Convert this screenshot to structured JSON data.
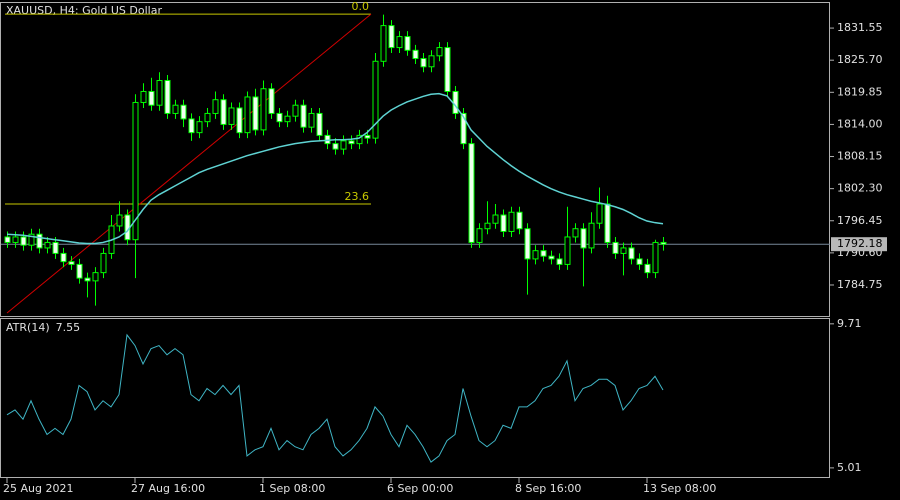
{
  "chart_data": [
    {
      "type": "candlestick",
      "title": "XAUUSD, H4:  Gold US Dollar",
      "color": "#00ff00",
      "categories": [
        "25 Aug 2021",
        null,
        null,
        null,
        null,
        null,
        null,
        null,
        null,
        null,
        null,
        null,
        null,
        null,
        null,
        null,
        "27 Aug 16:00",
        null,
        null,
        null,
        null,
        null,
        null,
        null,
        null,
        null,
        null,
        null,
        null,
        null,
        null,
        null,
        "1 Sep 08:00",
        null,
        null,
        null,
        null,
        null,
        null,
        null,
        null,
        null,
        null,
        null,
        null,
        null,
        null,
        null,
        "6 Sep 00:00",
        null,
        null,
        null,
        null,
        null,
        null,
        null,
        null,
        null,
        null,
        null,
        null,
        null,
        null,
        null,
        "8 Sep 16:00",
        null,
        null,
        null,
        null,
        null,
        null,
        null,
        null,
        null,
        null,
        null,
        null,
        null,
        null,
        null,
        "13 Sep 08:00",
        null,
        null
      ],
      "open": [
        1793.5,
        1792.5,
        1793.5,
        1792.0,
        1794.0,
        1791.5,
        1792.5,
        1790.5,
        1789.0,
        1788.5,
        1786.0,
        1785.5,
        1787.0,
        1790.5,
        1795.5,
        1797.5,
        1793.0,
        1818.0,
        1820.0,
        1817.5,
        1822.0,
        1816.0,
        1817.5,
        1815.0,
        1812.5,
        1814.5,
        1816.0,
        1818.5,
        1814.0,
        1817.0,
        1812.5,
        1819.0,
        1813.0,
        1820.5,
        1816.0,
        1814.5,
        1815.5,
        1817.5,
        1813.5,
        1816.0,
        1812.0,
        1810.5,
        1809.5,
        1811.0,
        1810.5,
        1812.0,
        1811.5,
        1825.5,
        1832.0,
        1828.0,
        1830.0,
        1827.5,
        1826.0,
        1824.5,
        1826.5,
        1828.0,
        1820.0,
        1816.0,
        1810.5,
        1792.5,
        1795.0,
        1796.0,
        1797.5,
        1794.5,
        1798.0,
        1795.0,
        1789.5,
        1791.0,
        1790.0,
        1789.5,
        1788.5,
        1793.5,
        1795.0,
        1791.5,
        1796.0,
        1799.5,
        1792.5,
        1790.5,
        1791.5,
        1789.5,
        1788.5,
        1787.0,
        1792.5
      ],
      "high": [
        1794.5,
        1794.5,
        1794.5,
        1795.0,
        1795.0,
        1793.5,
        1793.5,
        1791.5,
        1790.0,
        1789.5,
        1787.0,
        1788.0,
        1791.5,
        1797.5,
        1800.0,
        1798.5,
        1819.5,
        1821.5,
        1822.5,
        1823.5,
        1823.0,
        1818.5,
        1818.5,
        1816.0,
        1815.5,
        1817.0,
        1820.0,
        1819.5,
        1818.0,
        1818.0,
        1820.0,
        1820.5,
        1822.0,
        1821.5,
        1817.0,
        1816.5,
        1818.5,
        1818.5,
        1817.0,
        1817.0,
        1813.0,
        1811.5,
        1812.0,
        1812.0,
        1813.0,
        1813.0,
        1827.0,
        1834.0,
        1833.0,
        1831.0,
        1831.0,
        1828.5,
        1827.0,
        1827.5,
        1829.0,
        1829.0,
        1821.0,
        1817.0,
        1811.5,
        1796.0,
        1800.0,
        1799.5,
        1798.5,
        1799.0,
        1799.0,
        1796.0,
        1792.0,
        1792.0,
        1791.0,
        1790.5,
        1799.0,
        1796.0,
        1796.0,
        1798.0,
        1802.5,
        1801.0,
        1793.5,
        1792.5,
        1792.5,
        1790.5,
        1789.5,
        1793.0,
        1793.5
      ],
      "low": [
        1791.5,
        1791.5,
        1791.0,
        1791.0,
        1790.5,
        1790.5,
        1789.5,
        1788.0,
        1787.5,
        1785.0,
        1782.5,
        1781.0,
        1786.0,
        1789.5,
        1794.5,
        1792.0,
        1786.0,
        1817.0,
        1816.5,
        1816.5,
        1815.0,
        1815.0,
        1813.5,
        1811.0,
        1811.5,
        1813.5,
        1815.0,
        1813.0,
        1813.0,
        1811.5,
        1811.5,
        1812.0,
        1812.0,
        1815.0,
        1813.5,
        1813.5,
        1814.5,
        1812.5,
        1812.5,
        1811.0,
        1809.5,
        1808.5,
        1808.5,
        1809.5,
        1809.5,
        1810.5,
        1810.5,
        1824.5,
        1827.0,
        1827.0,
        1826.5,
        1825.0,
        1823.5,
        1823.5,
        1825.5,
        1819.0,
        1815.0,
        1809.5,
        1791.5,
        1791.5,
        1794.0,
        1795.0,
        1793.5,
        1793.5,
        1794.0,
        1783.0,
        1788.5,
        1789.0,
        1788.5,
        1787.5,
        1787.5,
        1792.5,
        1784.5,
        1790.5,
        1795.0,
        1791.5,
        1789.5,
        1786.5,
        1788.5,
        1787.5,
        1786.0,
        1786.0,
        1791.0
      ],
      "close": [
        1792.5,
        1793.5,
        1792.0,
        1794.0,
        1791.5,
        1792.5,
        1790.5,
        1789.0,
        1788.5,
        1786.0,
        1785.5,
        1787.0,
        1790.5,
        1795.5,
        1797.5,
        1793.0,
        1818.0,
        1820.0,
        1817.5,
        1822.0,
        1816.0,
        1817.5,
        1815.0,
        1812.5,
        1814.5,
        1816.0,
        1818.5,
        1814.0,
        1817.0,
        1812.5,
        1819.0,
        1813.0,
        1820.5,
        1816.0,
        1814.5,
        1815.5,
        1817.5,
        1813.5,
        1816.0,
        1812.0,
        1810.5,
        1809.5,
        1811.0,
        1810.5,
        1812.0,
        1811.5,
        1825.5,
        1832.0,
        1828.0,
        1830.0,
        1827.5,
        1826.0,
        1824.5,
        1826.5,
        1828.0,
        1820.0,
        1816.0,
        1810.5,
        1792.5,
        1795.0,
        1796.0,
        1797.5,
        1794.5,
        1798.0,
        1795.0,
        1789.5,
        1791.0,
        1790.0,
        1789.5,
        1788.5,
        1793.5,
        1795.0,
        1791.5,
        1796.0,
        1799.5,
        1792.5,
        1790.5,
        1791.5,
        1789.5,
        1788.5,
        1787.0,
        1792.5,
        1792.18
      ],
      "ma": {
        "color": "#5fd3d3",
        "values": [
          1794.0,
          1793.9,
          1793.8,
          1793.6,
          1793.4,
          1793.2,
          1793.0,
          1792.8,
          1792.6,
          1792.4,
          1792.3,
          1792.3,
          1792.5,
          1792.9,
          1793.5,
          1794.5,
          1796.5,
          1798.5,
          1800.2,
          1801.2,
          1802.0,
          1802.8,
          1803.6,
          1804.4,
          1805.2,
          1805.8,
          1806.3,
          1806.8,
          1807.3,
          1807.8,
          1808.3,
          1808.7,
          1809.1,
          1809.5,
          1809.9,
          1810.2,
          1810.5,
          1810.7,
          1810.9,
          1811.0,
          1811.1,
          1811.2,
          1811.2,
          1811.3,
          1811.5,
          1812.5,
          1814.0,
          1815.5,
          1816.6,
          1817.4,
          1818.1,
          1818.6,
          1819.1,
          1819.5,
          1819.6,
          1819.2,
          1817.5,
          1815.5,
          1813.0,
          1811.5,
          1810.0,
          1808.8,
          1807.6,
          1806.5,
          1805.5,
          1804.6,
          1803.8,
          1803.0,
          1802.3,
          1801.7,
          1801.2,
          1800.8,
          1800.4,
          1800.0,
          1799.7,
          1799.4,
          1799.0,
          1798.5,
          1797.8,
          1797.0,
          1796.4,
          1796.1,
          1795.9
        ]
      },
      "trendline": {
        "color": "#d00000",
        "x": [
          0,
          45.5
        ],
        "y": [
          1779.65,
          1834.1
        ]
      },
      "fibo": {
        "color": "#c8c800",
        "levels": [
          {
            "level": {
              "value": 0,
              "label": "0.0"
            },
            "price": 1834.1
          },
          {
            "level": {
              "value": 23.6,
              "label": "23.6"
            },
            "price": 1799.5
          }
        ]
      },
      "ylim": [
        1779.1,
        1836.3
      ],
      "yticks": [
        {
          "value": 1831.55,
          "label": "1831.55"
        },
        {
          "value": 1825.7,
          "label": "1825.70"
        },
        {
          "value": 1819.85,
          "label": "1819.85"
        },
        {
          "value": 1814,
          "label": "1814.00"
        },
        {
          "value": 1808.15,
          "label": "1808.15"
        },
        {
          "value": 1802.3,
          "label": "1802.30"
        },
        {
          "value": 1796.45,
          "label": "1796.45"
        },
        {
          "value": 1790.6,
          "label": "1790.60"
        },
        1784.75
      ]
    },
    {
      "type": "line",
      "name": "ATR(14)",
      "color": "#3fb5c5",
      "values": [
        6.74,
        6.9,
        6.6,
        7.2,
        6.6,
        6.1,
        6.3,
        6.1,
        6.6,
        7.7,
        7.5,
        6.9,
        7.2,
        7.0,
        7.4,
        9.35,
        9.0,
        8.4,
        8.9,
        9.0,
        8.7,
        8.9,
        8.7,
        7.4,
        7.2,
        7.6,
        7.4,
        7.7,
        7.4,
        7.7,
        5.4,
        5.6,
        5.7,
        6.3,
        5.6,
        5.9,
        5.7,
        5.6,
        6.1,
        6.3,
        6.6,
        5.7,
        5.4,
        5.6,
        5.9,
        6.3,
        7.0,
        6.7,
        6.1,
        5.7,
        6.4,
        6.1,
        5.7,
        5.2,
        5.4,
        5.9,
        6.1,
        7.6,
        6.7,
        5.9,
        5.7,
        5.9,
        6.4,
        6.3,
        7.0,
        7.0,
        7.2,
        7.6,
        7.7,
        8.0,
        8.5,
        7.2,
        7.6,
        7.7,
        7.9,
        7.9,
        7.7,
        6.9,
        7.2,
        7.6,
        7.7,
        8.0,
        7.55
      ],
      "ylim": [
        4.68,
        9.9
      ],
      "yticks": [
        9.71,
        5.01
      ]
    }
  ]
}
